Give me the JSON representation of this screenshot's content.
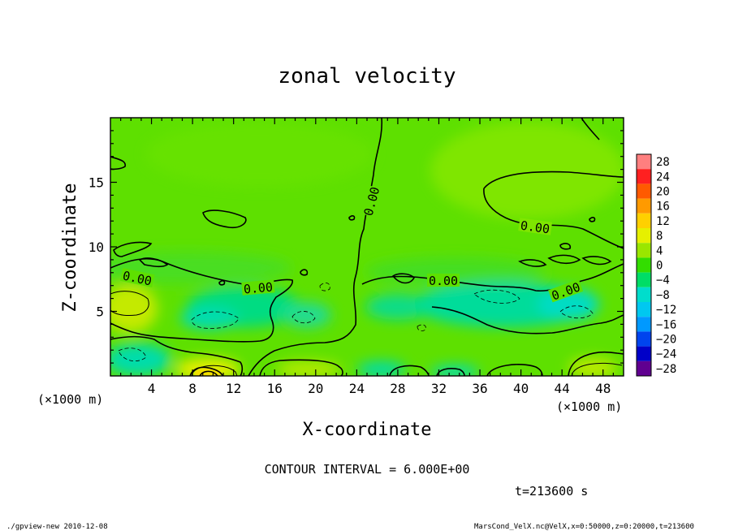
{
  "chart_data": {
    "type": "heatmap",
    "title": "zonal velocity",
    "xlabel": "X-coordinate",
    "ylabel": "Z-coordinate",
    "x_unit": "(×1000 m)",
    "xlim": [
      0,
      50
    ],
    "ylim": [
      0,
      20
    ],
    "x_ticks": [
      4,
      8,
      12,
      16,
      20,
      24,
      28,
      32,
      36,
      40,
      44,
      48
    ],
    "y_ticks": [
      5,
      10,
      15
    ],
    "colorbar": {
      "levels": [
        28,
        24,
        20,
        16,
        12,
        8,
        4,
        0,
        -4,
        -8,
        -12,
        -16,
        -20,
        -24,
        -28
      ],
      "level_labels": [
        "28",
        "24",
        "20",
        "16",
        "12",
        "8",
        "4",
        "0",
        "−4",
        "−8",
        "−12",
        "−16",
        "−20",
        "−24",
        "−28"
      ],
      "colors": [
        "#ff7f7f",
        "#ff2020",
        "#ff5a00",
        "#ff9a00",
        "#ffd000",
        "#e6f000",
        "#9ae600",
        "#33dd00",
        "#00dd66",
        "#00ddcc",
        "#00c8f0",
        "#0099ff",
        "#0044ee",
        "#0000c8",
        "#600090"
      ]
    },
    "contour_interval_text": "CONTOUR INTERVAL = 6.000E+00",
    "contour_labels": [
      "0.00",
      "0.00",
      "0.00",
      "0.00",
      "0.00",
      "0.00"
    ],
    "time_text": "t=213600 s",
    "field_summary": {
      "background": "mostly ~0 to +4 (green)",
      "positive_patches": [
        "x≈0–4, z≈3–7",
        "x≈8–12, z≈0–1 (peak ~ +8 to +12)",
        "x≈40–48, z≈0–1"
      ],
      "negative_patches": [
        "x≈0–4, z≈0–2",
        "x≈8–16, z≈3–6",
        "x≈32–48, z≈2–7 (min ~ -8)"
      ]
    }
  },
  "footer": {
    "left": "./gpview-new  2010-12-08",
    "right": "MarsCond_VelX.nc@VelX,x=0:50000,z=0:20000,t=213600"
  }
}
